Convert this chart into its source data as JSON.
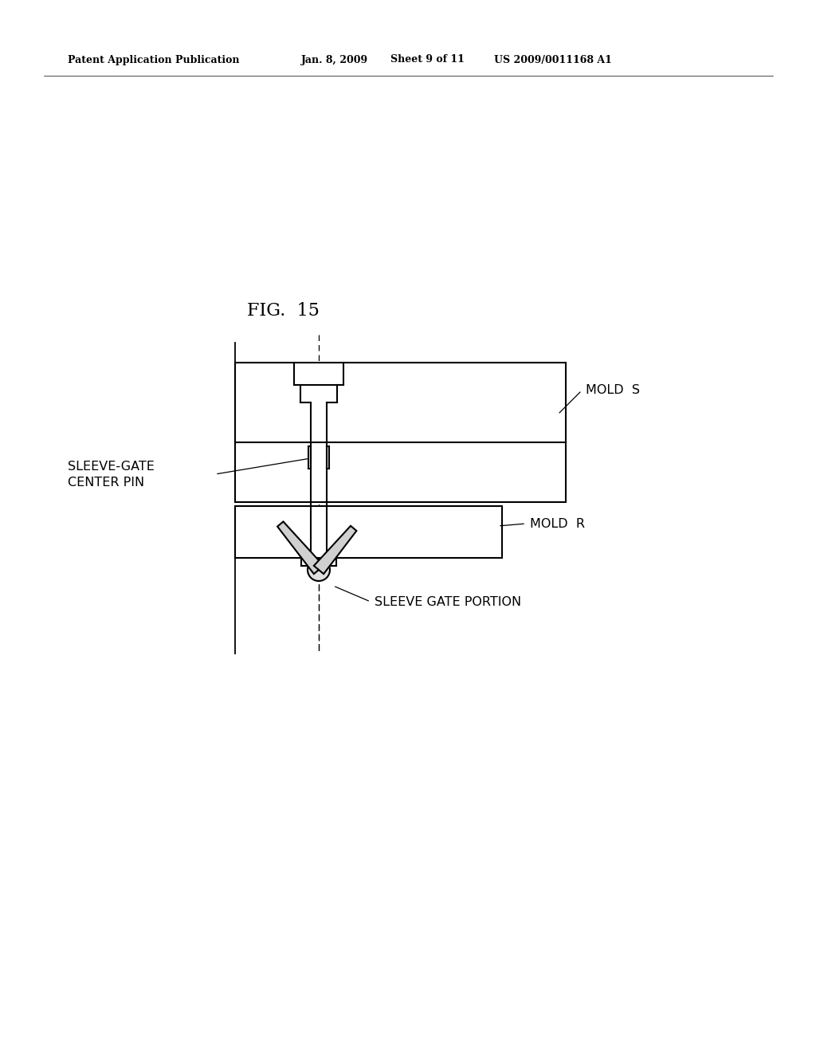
{
  "background_color": "#ffffff",
  "header_line1": "Patent Application Publication",
  "header_line2": "Jan. 8, 2009",
  "header_line3": "Sheet 9 of 11",
  "header_line4": "US 2009/0011168 A1",
  "fig_label": "FIG.  15",
  "line_color": "#000000",
  "text_color": "#000000",
  "lw": 1.5
}
